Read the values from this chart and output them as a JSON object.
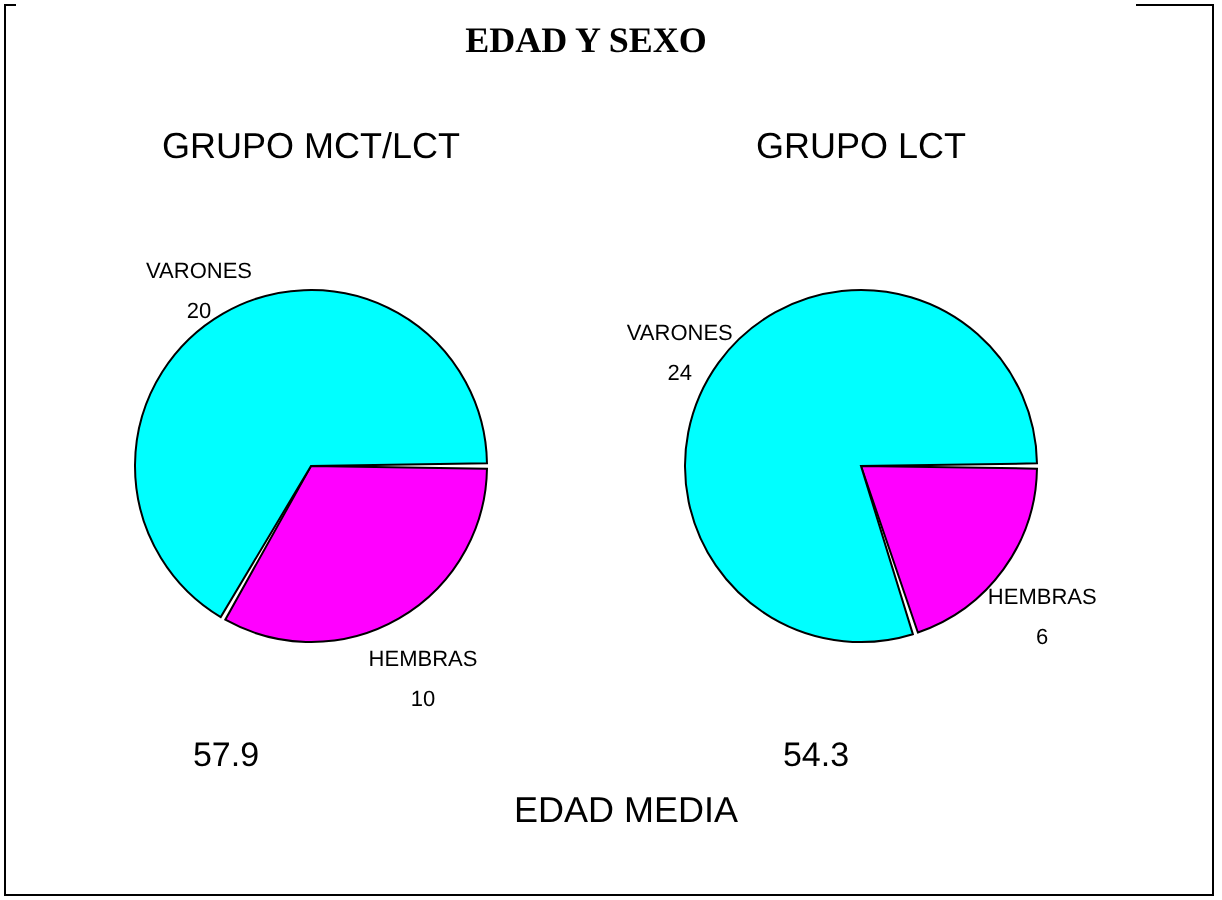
{
  "chart_data": [
    {
      "type": "pie",
      "title": "GRUPO MCT/LCT",
      "categories": [
        "HEMBRAS",
        "VARONES"
      ],
      "values": [
        10,
        20
      ],
      "colors": [
        "#ff00ff",
        "#00ffff"
      ],
      "data_labels": true,
      "annotations": [
        "EDAD Y SEXO",
        "57.9",
        "EDAD MEDIA"
      ]
    },
    {
      "type": "pie",
      "title": "GRUPO LCT",
      "categories": [
        "HEMBRAS",
        "VARONES"
      ],
      "values": [
        6,
        24
      ],
      "colors": [
        "#ff00ff",
        "#00ffff"
      ],
      "data_labels": true,
      "annotations": [
        "54.3"
      ]
    }
  ]
}
